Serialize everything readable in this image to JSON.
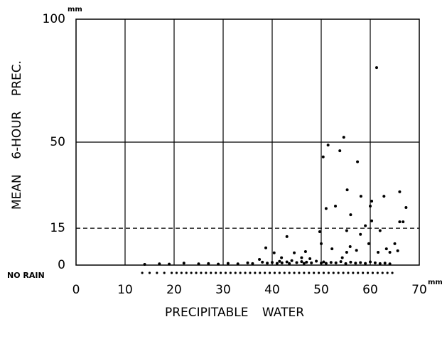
{
  "chart_data": {
    "type": "scatter",
    "x_label": "PRECIPITABLE WATER",
    "y_label": "MEAN 6-HOUR PREC.",
    "x_unit": "mm",
    "y_unit": "mm",
    "no_rain_label": "NO RAIN",
    "xlim": [
      0,
      70
    ],
    "xticks": [
      0,
      10,
      20,
      30,
      40,
      50,
      60,
      70
    ],
    "ylim": [
      0,
      100
    ],
    "yticks": [
      0,
      15,
      50,
      100
    ],
    "dashed_ytick": 15,
    "grid": true,
    "color": "#000000",
    "series": [
      {
        "x": [
          61.3,
          54.6,
          51.4,
          53.8,
          50.4,
          57.4,
          55.3,
          58.1,
          62.8,
          66,
          60.3,
          56,
          60,
          51,
          52.9,
          59,
          55.2,
          60.3,
          66,
          66.7,
          67.3,
          49.7,
          43,
          38.7,
          40.4,
          46.8,
          62,
          58,
          50,
          52.2,
          55.9,
          57.2,
          63.3,
          65,
          65.6,
          59.7,
          61.6,
          64,
          44.5,
          46,
          47.7,
          54.3,
          41.9,
          37.4,
          55.2,
          14,
          17,
          19,
          22,
          25,
          27,
          29,
          31,
          33,
          35,
          36,
          38,
          39,
          40,
          41,
          41.5,
          42,
          43,
          43.5,
          44,
          45,
          46,
          46.5,
          47,
          48,
          49,
          50,
          50.5,
          51,
          52,
          53,
          54,
          55,
          56,
          57,
          58,
          59,
          60,
          61,
          62,
          63,
          64
        ],
        "values": [
          80.3,
          52,
          48.8,
          46.5,
          44,
          42,
          30.6,
          28,
          28,
          29.8,
          26,
          20.5,
          24,
          23,
          24,
          16,
          14,
          18,
          17.6,
          17.6,
          23.4,
          13.6,
          11.6,
          7,
          5,
          5.5,
          14,
          12.5,
          8.7,
          6.6,
          7.5,
          6,
          6.6,
          8.7,
          5.8,
          8.7,
          5.2,
          5.2,
          5,
          3,
          2.6,
          3,
          3,
          2.3,
          5.2,
          0.3,
          0.5,
          0.4,
          0.8,
          0.5,
          0.6,
          0.4,
          0.7,
          0.5,
          0.9,
          0.6,
          1.2,
          0.8,
          1.1,
          0.7,
          1.5,
          0.9,
          1.3,
          0.6,
          1.8,
          1,
          1.4,
          0.7,
          1.2,
          0.9,
          1.6,
          0.8,
          1.3,
          0.7,
          1.1,
          0.9,
          1.4,
          0.6,
          1.2,
          0.8,
          1,
          0.7,
          1.3,
          0.9,
          0.6,
          0.8,
          0.5
        ]
      }
    ],
    "no_rain_x": [
      13.5,
      15,
      16.5,
      18,
      19.5,
      20.5,
      21.5,
      22.5,
      23.5,
      24.5,
      25.5,
      26.5,
      27.5,
      28.5,
      29.5,
      30.5,
      31.5,
      32.5,
      33.5,
      34.5,
      35.5,
      36.5,
      37.5,
      38.5,
      39.5,
      40.5,
      41.5,
      42.5,
      43.5,
      44.5,
      45.5,
      46.5,
      47.5,
      48.5,
      49.5,
      50.5,
      51.5,
      52.5,
      53.5,
      54.5,
      55.5,
      56.5,
      57.5,
      58.5,
      59.5,
      60.5,
      61.5,
      62.5,
      63.5,
      64.5
    ]
  }
}
